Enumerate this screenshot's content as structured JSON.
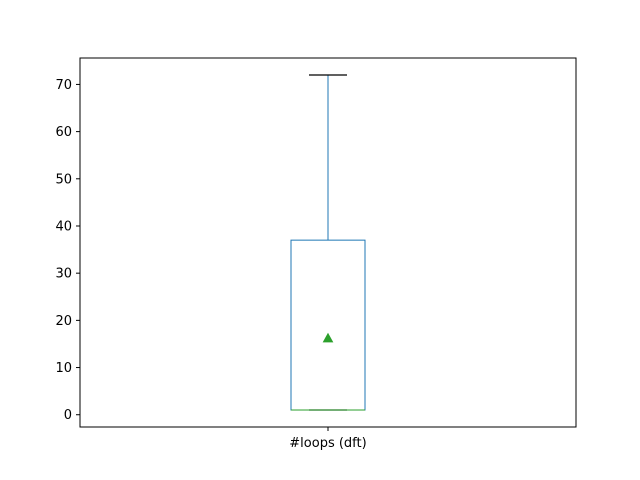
{
  "chart_data": {
    "type": "box",
    "title": "",
    "xlabel": "",
    "ylabel": "",
    "categories": [
      "#loops (dft)"
    ],
    "ylim": [
      -2.6,
      75.6
    ],
    "yticks": [
      0,
      10,
      20,
      30,
      40,
      50,
      60,
      70
    ],
    "ytick_labels": [
      "0",
      "10",
      "20",
      "30",
      "40",
      "50",
      "60",
      "70"
    ],
    "grid": false,
    "legend": "none",
    "boxes": [
      {
        "category": "#loops (dft)",
        "whisker_low": 1,
        "q1": 1,
        "median": 1,
        "q3": 37,
        "whisker_high": 72,
        "mean": 16.2
      }
    ],
    "colors": {
      "box": "#1f77b4",
      "median": "#2ca02c",
      "mean_marker": "#2ca02c",
      "whisker_cap": "#000000"
    }
  }
}
